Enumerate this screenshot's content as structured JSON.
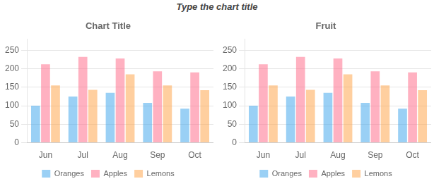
{
  "title": "Type the chart title",
  "chart_data": [
    {
      "type": "bar",
      "title": "Chart Title",
      "categories": [
        "Jun",
        "Jul",
        "Aug",
        "Sep",
        "Oct"
      ],
      "series": [
        {
          "name": "Oranges",
          "values": [
            100,
            125,
            135,
            108,
            92
          ]
        },
        {
          "name": "Apples",
          "values": [
            212,
            232,
            228,
            193,
            190
          ]
        },
        {
          "name": "Lemons",
          "values": [
            155,
            143,
            185,
            155,
            142
          ]
        }
      ],
      "ylim": [
        0,
        280
      ],
      "yticks": [
        0,
        50,
        100,
        150,
        200,
        250
      ],
      "grid": true,
      "legend": "bottom"
    },
    {
      "type": "bar",
      "title": "Fruit",
      "categories": [
        "Jun",
        "Jul",
        "Aug",
        "Sep",
        "Oct"
      ],
      "series": [
        {
          "name": "Oranges",
          "values": [
            100,
            125,
            135,
            108,
            92
          ]
        },
        {
          "name": "Apples",
          "values": [
            212,
            232,
            228,
            193,
            190
          ]
        },
        {
          "name": "Lemons",
          "values": [
            155,
            143,
            185,
            155,
            142
          ]
        }
      ],
      "ylim": [
        0,
        280
      ],
      "yticks": [
        0,
        50,
        100,
        150,
        200,
        250
      ],
      "grid": true,
      "legend": "bottom"
    }
  ]
}
